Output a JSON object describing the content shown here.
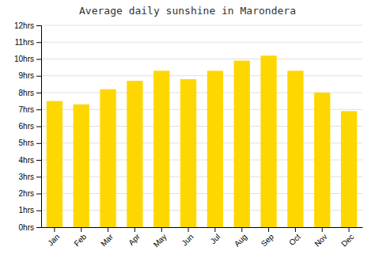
{
  "chart_data": {
    "type": "bar",
    "title": "Average daily sunshine in Marondera",
    "categories": [
      "Jan",
      "Feb",
      "Mar",
      "Apr",
      "May",
      "Jun",
      "Jul",
      "Aug",
      "Sep",
      "Oct",
      "Nov",
      "Dec"
    ],
    "values": [
      7.5,
      7.3,
      8.2,
      8.7,
      9.3,
      8.8,
      9.3,
      9.9,
      10.2,
      9.3,
      8.0,
      6.9
    ],
    "color": "#FFD700",
    "ylim": [
      0,
      12
    ],
    "yticks": [
      {
        "value": 0,
        "label": "0hrs"
      },
      {
        "value": 1,
        "label": "1hrs"
      },
      {
        "value": 2,
        "label": "2hrs"
      },
      {
        "value": 3,
        "label": "3hrs"
      },
      {
        "value": 4,
        "label": "4hrs"
      },
      {
        "value": 5,
        "label": "5hrs"
      },
      {
        "value": 6,
        "label": "6hrs"
      },
      {
        "value": 7,
        "label": "7hrs"
      },
      {
        "value": 8,
        "label": "8hrs"
      },
      {
        "value": 9,
        "label": "9hrs"
      },
      {
        "value": 10,
        "label": "10hrs"
      },
      {
        "value": 11,
        "label": "11hrs"
      },
      {
        "value": 12,
        "label": "12hrs"
      }
    ],
    "grid": true
  }
}
